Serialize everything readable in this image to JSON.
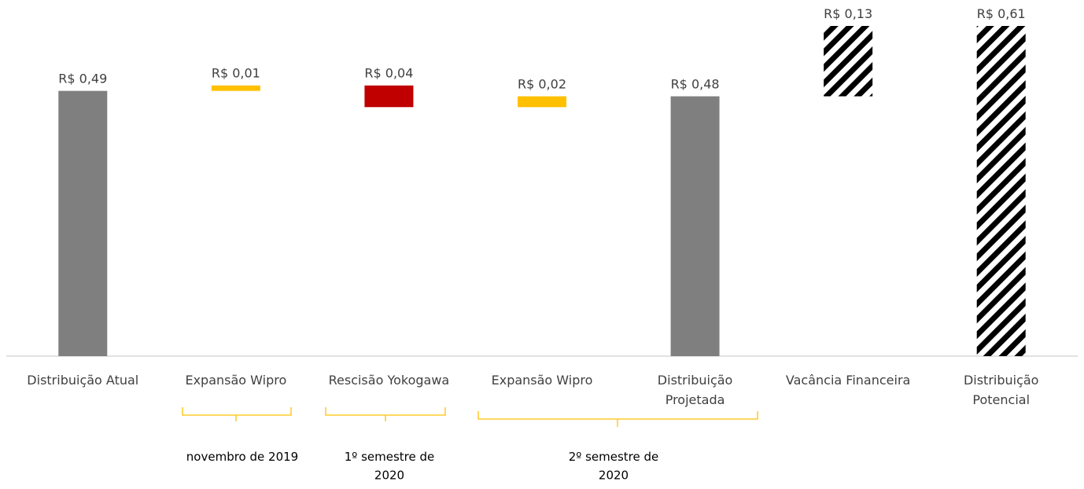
{
  "chart_data": {
    "type": "waterfall",
    "categories": [
      "Distribuição Atual",
      "Expansão Wipro",
      "Rescisão Yokogawa",
      "Expansão Wipro",
      "Distribuição\nProjetada",
      "Vacância Financeira",
      "Distribuição\nPotencial"
    ],
    "values": [
      0.49,
      0.01,
      -0.04,
      0.02,
      0.48,
      0.13,
      0.61
    ],
    "value_labels": [
      "R$ 0,49",
      "R$ 0,01",
      "R$ 0,04",
      "R$ 0,02",
      "R$ 0,48",
      "R$ 0,13",
      "R$ 0,61"
    ],
    "measures": [
      "absolute",
      "relative",
      "relative",
      "relative",
      "absolute",
      "relative",
      "absolute"
    ],
    "colors": [
      "#7f7f7f",
      "#ffc000",
      "#c00000",
      "#ffc000",
      "#7f7f7f",
      "#ffc000",
      "#7f7f7f"
    ],
    "hatched": [
      false,
      false,
      false,
      false,
      false,
      true,
      true
    ],
    "ylim": [
      0,
      0.61
    ]
  },
  "groups": [
    "novembro de 2019",
    "1º semestre de\n2020",
    "2º semestre de\n2020"
  ]
}
